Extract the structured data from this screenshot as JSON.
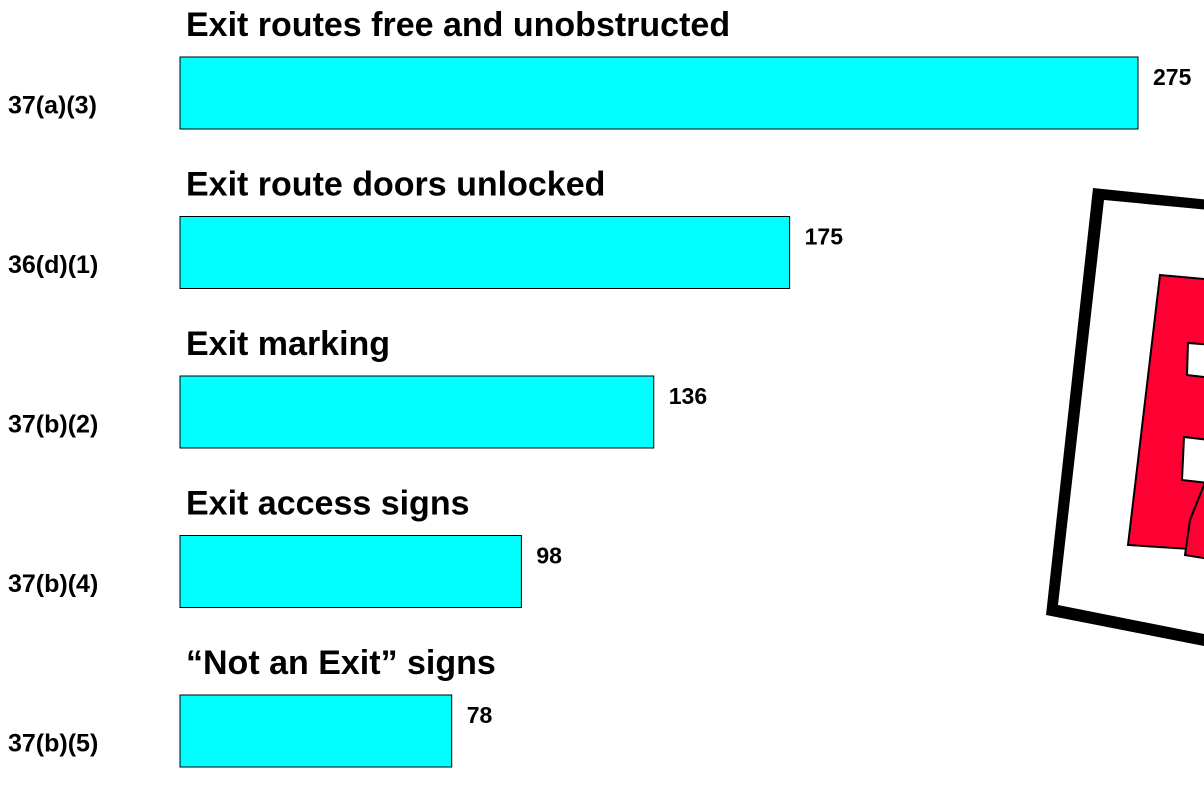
{
  "chart_data": {
    "type": "bar",
    "orientation": "horizontal",
    "categories": [
      "37(a)(3)",
      "36(d)(1)",
      "37(b)(2)",
      "37(b)(4)",
      "37(b)(5)"
    ],
    "descriptions": [
      "Exit routes free and unobstructed",
      "Exit route doors unlocked",
      "Exit marking",
      "Exit access signs",
      "“Not an Exit” signs"
    ],
    "values": [
      275,
      175,
      136,
      98,
      78
    ],
    "color": "#00ffff"
  }
}
